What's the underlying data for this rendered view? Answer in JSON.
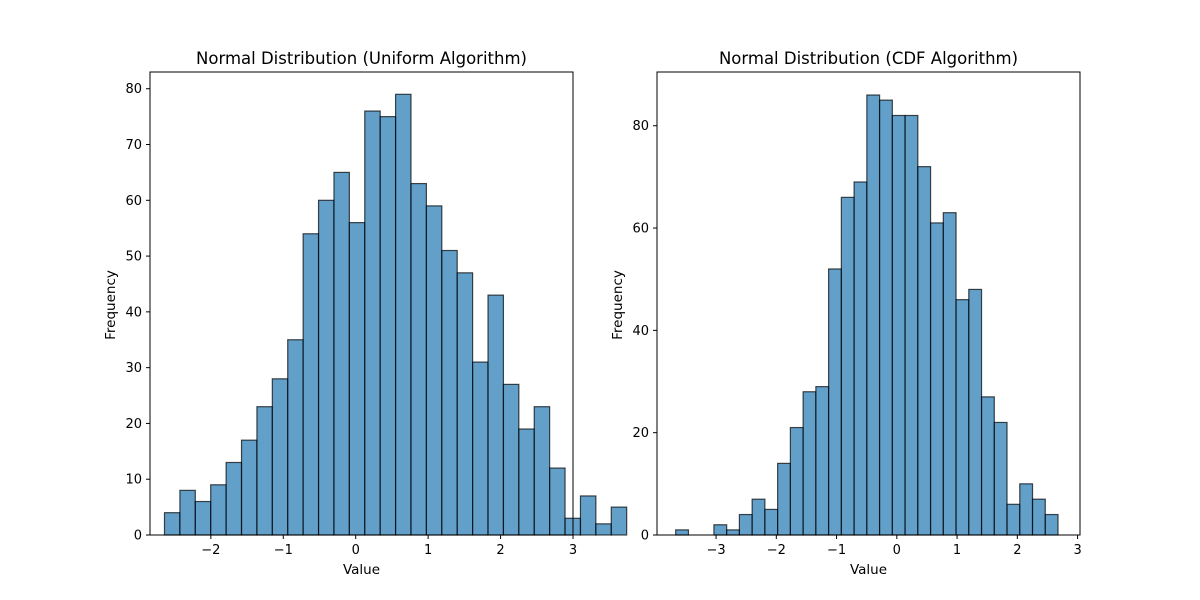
{
  "chart_data": [
    {
      "type": "bar",
      "title": "Normal Distribution (Uniform Algorithm)",
      "xlabel": "Value",
      "ylabel": "Frequency",
      "xlim": [
        -2.84,
        3.0
      ],
      "ylim": [
        0,
        83
      ],
      "xticks": [
        -2,
        -1,
        0,
        1,
        2,
        3
      ],
      "yticks": [
        0,
        10,
        20,
        30,
        40,
        50,
        60,
        70,
        80
      ],
      "bin_start": -2.64,
      "bin_width": 0.2127,
      "values": [
        4,
        8,
        6,
        9,
        13,
        17,
        23,
        28,
        35,
        54,
        60,
        65,
        56,
        76,
        75,
        79,
        63,
        59,
        51,
        47,
        31,
        43,
        27,
        19,
        23,
        12,
        3,
        7,
        2,
        5
      ]
    },
    {
      "type": "bar",
      "title": "Normal Distribution (CDF Algorithm)",
      "xlabel": "Value",
      "ylabel": "Frequency",
      "xlim": [
        -3.98,
        3.04
      ],
      "ylim": [
        0,
        90.5
      ],
      "xticks": [
        -3,
        -2,
        -1,
        0,
        1,
        2,
        3
      ],
      "yticks": [
        0,
        20,
        40,
        60,
        80
      ],
      "bin_start": -3.67,
      "bin_width": 0.2115,
      "values": [
        1,
        0,
        0,
        2,
        1,
        4,
        7,
        5,
        14,
        21,
        28,
        29,
        52,
        66,
        69,
        86,
        85,
        82,
        82,
        72,
        61,
        63,
        46,
        48,
        27,
        22,
        6,
        10,
        7,
        4
      ]
    }
  ]
}
